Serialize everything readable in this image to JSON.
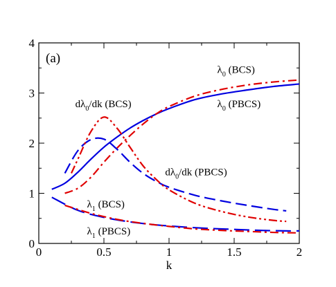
{
  "chart_data": {
    "type": "line",
    "panel_label": "(a)",
    "xlabel": "k",
    "ylabel": "",
    "xlim": [
      0,
      2
    ],
    "ylim": [
      0,
      4
    ],
    "xticks": [
      0,
      0.5,
      1,
      1.5,
      2
    ],
    "xtick_labels": [
      "0",
      "0.5",
      "1",
      "1.5",
      "2"
    ],
    "yticks": [
      0,
      1,
      2,
      3,
      4
    ],
    "ytick_labels": [
      "0",
      "1",
      "2",
      "3",
      "4"
    ],
    "grid": false,
    "colors": {
      "blue": "#0000e0",
      "red": "#e00000"
    },
    "series": [
      {
        "style": "solid",
        "color": "#0000e0",
        "x": [
          0.1,
          0.2,
          0.3,
          0.4,
          0.5,
          0.6,
          0.7,
          0.8,
          0.9,
          1.0,
          1.2,
          1.4,
          1.6,
          1.8,
          2.0
        ],
        "y": [
          1.08,
          1.2,
          1.42,
          1.68,
          1.92,
          2.12,
          2.3,
          2.45,
          2.58,
          2.69,
          2.87,
          2.98,
          3.06,
          3.13,
          3.18
        ]
      },
      {
        "style": "dashdot",
        "color": "#e00000",
        "x": [
          0.2,
          0.3,
          0.4,
          0.5,
          0.6,
          0.7,
          0.8,
          0.9,
          1.0,
          1.2,
          1.4,
          1.6,
          1.8,
          2.0
        ],
        "y": [
          1.0,
          1.1,
          1.32,
          1.62,
          1.9,
          2.15,
          2.38,
          2.58,
          2.73,
          2.94,
          3.07,
          3.16,
          3.22,
          3.26
        ]
      },
      {
        "style": "dashed",
        "color": "#0000e0",
        "x": [
          0.2,
          0.3,
          0.4,
          0.5,
          0.6,
          0.7,
          0.8,
          0.9,
          1.0,
          1.2,
          1.4,
          1.6,
          1.8,
          1.9
        ],
        "y": [
          1.4,
          1.85,
          2.07,
          2.08,
          1.88,
          1.62,
          1.4,
          1.24,
          1.12,
          0.96,
          0.85,
          0.76,
          0.68,
          0.65
        ]
      },
      {
        "style": "dashdotdot",
        "color": "#e00000",
        "x": [
          0.25,
          0.3,
          0.4,
          0.5,
          0.6,
          0.7,
          0.8,
          0.9,
          1.0,
          1.2,
          1.4,
          1.6,
          1.8,
          1.9
        ],
        "y": [
          1.4,
          1.68,
          2.23,
          2.52,
          2.3,
          1.92,
          1.55,
          1.28,
          1.07,
          0.8,
          0.64,
          0.53,
          0.46,
          0.44
        ]
      },
      {
        "style": "dashed-long",
        "color": "#0000e0",
        "x": [
          0.1,
          0.3,
          0.5,
          0.7,
          0.9,
          1.1,
          1.3,
          1.5,
          1.7,
          1.9,
          2.0
        ],
        "y": [
          0.92,
          0.66,
          0.52,
          0.43,
          0.37,
          0.33,
          0.3,
          0.28,
          0.26,
          0.25,
          0.25
        ]
      },
      {
        "style": "dashdot",
        "color": "#e00000",
        "x": [
          0.2,
          0.4,
          0.6,
          0.8,
          1.0,
          1.2,
          1.4,
          1.6,
          1.8,
          2.0
        ],
        "y": [
          0.76,
          0.6,
          0.48,
          0.4,
          0.34,
          0.29,
          0.26,
          0.24,
          0.22,
          0.21
        ]
      }
    ],
    "annotations": [
      {
        "id": "l0bcs",
        "main": "λ",
        "sub": "0",
        "rest": " (BCS)",
        "x": 1.37,
        "y": 3.4
      },
      {
        "id": "l0pbcs",
        "main": "λ",
        "sub": "0",
        "rest": " (PBCS)",
        "x": 1.37,
        "y": 2.72
      },
      {
        "id": "dl0bcs",
        "main": "dλ",
        "sub": "0",
        "rest": "/dk (BCS)",
        "x": 0.28,
        "y": 2.72
      },
      {
        "id": "dl0pbcs",
        "main": "dλ",
        "sub": "0",
        "rest": "/dk (PBCS)",
        "x": 0.97,
        "y": 1.36
      },
      {
        "id": "l1bcs",
        "main": "λ",
        "sub": "1",
        "rest": " (BCS)",
        "x": 0.37,
        "y": 0.72
      },
      {
        "id": "l1pbcs",
        "main": "λ",
        "sub": "1",
        "rest": " (PBCS)",
        "x": 0.37,
        "y": 0.18
      }
    ]
  }
}
